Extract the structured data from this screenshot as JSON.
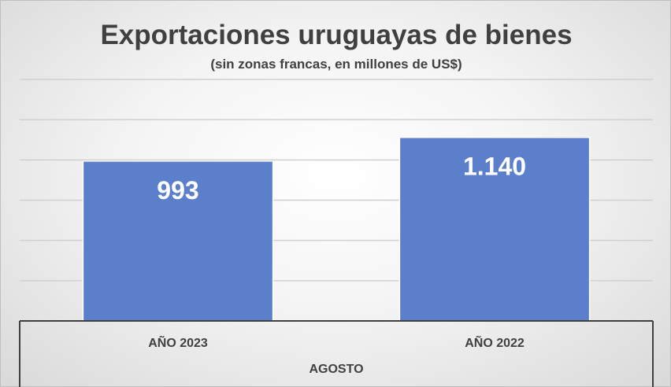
{
  "chart_data": {
    "type": "bar",
    "title": "Exportaciones uruguayas de bienes",
    "subtitle": "(sin zonas francas, en millones de US$)",
    "group_label": "AGOSTO",
    "categories": [
      "AÑO 2023",
      "AÑO 2022"
    ],
    "values": [
      993,
      1140
    ],
    "data_labels": [
      "993",
      "1.140"
    ],
    "ylim": [
      0,
      1500
    ],
    "y_tick_step": 250,
    "grid": true,
    "legend": "none",
    "colors": {
      "bar": "#5b7fca",
      "bar_edge": "#ffffff",
      "grid": "#d0d0d0",
      "axis": "#404040",
      "data_label": "#ffffff"
    }
  }
}
